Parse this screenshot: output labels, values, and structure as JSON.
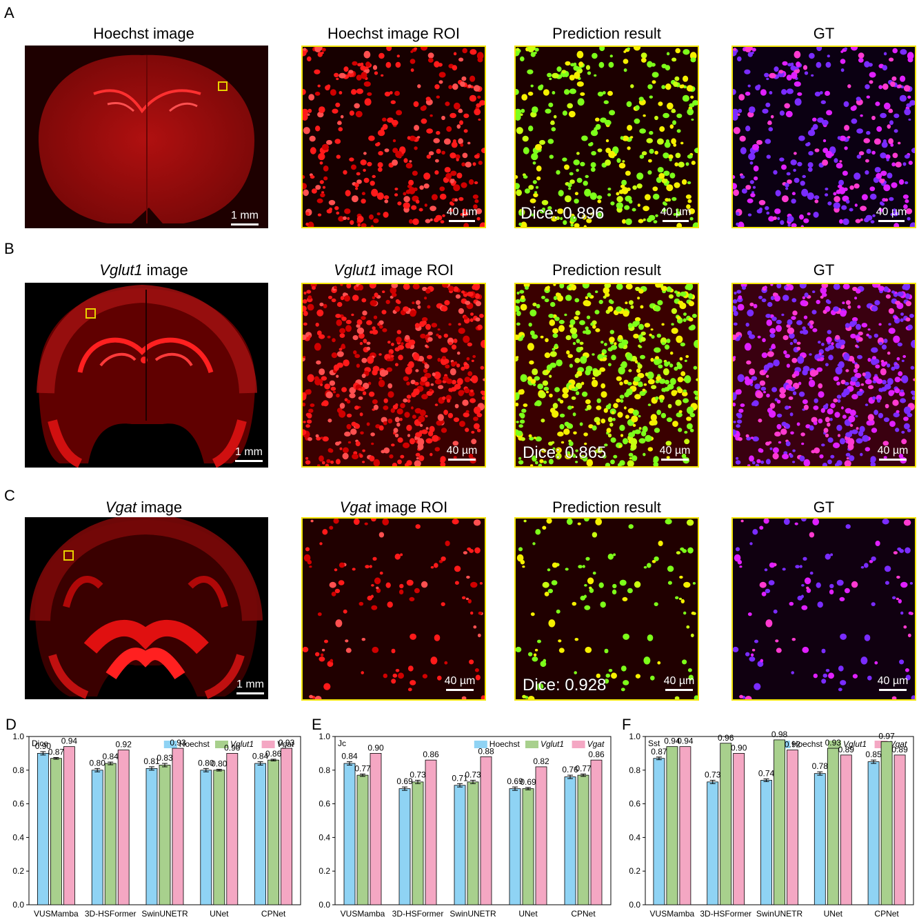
{
  "panels": {
    "A": {
      "letter": "A",
      "titles": {
        "t1": "Hoechst image",
        "t2": "Hoechst  image ROI",
        "t3": "Prediction result",
        "t4": "GT"
      },
      "scale_mm": "1 mm",
      "scale_um": "40 µm",
      "dice": "Dice: 0.896"
    },
    "B": {
      "letter": "B",
      "titles": {
        "t1_italic": "Vglut1",
        "t1_rest": " image",
        "t2_italic": "Vglut1",
        "t2_rest": " image ROI",
        "t3": "Prediction result",
        "t4": "GT"
      },
      "scale_mm": "1 mm",
      "scale_um": "40 µm",
      "dice": "Dice: 0.865"
    },
    "C": {
      "letter": "C",
      "titles": {
        "t1_italic": "Vgat",
        "t1_rest": " image",
        "t2_italic": "Vgat",
        "t2_rest": " image ROI",
        "t3": "Prediction result",
        "t4": "GT"
      },
      "scale_mm": "1 mm",
      "scale_um": "40 µm",
      "dice": "Dice: 0.928"
    }
  },
  "colors": {
    "hoechst": "#8fd3f4",
    "vglut1": "#a8d08d",
    "vgat": "#f4a7c3",
    "roi": "#f2e400"
  },
  "chart_data": [
    {
      "letter": "D",
      "type": "bar",
      "ylabel": "Dice",
      "ylim": [
        0,
        1.0
      ],
      "yticks": [
        "0.0",
        "0.2",
        "0.4",
        "0.6",
        "0.8",
        "1.0"
      ],
      "categories": [
        "VUSMamba",
        "3D-HSFormer",
        "SwinUNETR",
        "UNet",
        "CPNet"
      ],
      "series": [
        {
          "name": "Hoechst",
          "color": "#8fd3f4",
          "values": [
            0.9,
            0.8,
            0.81,
            0.8,
            0.84
          ],
          "labels": [
            "0.90",
            "0.80",
            "0.81",
            "0.80",
            "0.84"
          ],
          "err": [
            0.01,
            0.01,
            0.01,
            0.01,
            0.01
          ]
        },
        {
          "name": "Vglut1",
          "italic": true,
          "color": "#a8d08d",
          "values": [
            0.87,
            0.84,
            0.83,
            0.8,
            0.86
          ],
          "labels": [
            "0.87",
            "0.84",
            "0.83",
            "0.80",
            "0.86"
          ],
          "err": [
            0.005,
            0.008,
            0.01,
            0.005,
            0.005
          ]
        },
        {
          "name": "Vgat",
          "italic": true,
          "color": "#f4a7c3",
          "values": [
            0.94,
            0.92,
            0.93,
            0.9,
            0.93
          ],
          "labels": [
            "0.94",
            "0.92",
            "0.93",
            "0.90",
            "0.93"
          ],
          "err": [
            0,
            0,
            0,
            0,
            0
          ]
        }
      ]
    },
    {
      "letter": "E",
      "type": "bar",
      "ylabel": "Jc",
      "ylim": [
        0,
        1.0
      ],
      "yticks": [
        "0.0",
        "0.2",
        "0.4",
        "0.6",
        "0.8",
        "1.0"
      ],
      "categories": [
        "VUSMamba",
        "3D-HSFormer",
        "SwinUNETR",
        "UNet",
        "CPNet"
      ],
      "series": [
        {
          "name": "Hoechst",
          "color": "#8fd3f4",
          "values": [
            0.84,
            0.69,
            0.71,
            0.69,
            0.76
          ],
          "labels": [
            "0.84",
            "0.69",
            "0.71",
            "0.69",
            "0.76"
          ],
          "err": [
            0.01,
            0.01,
            0.01,
            0.01,
            0.01
          ]
        },
        {
          "name": "Vglut1",
          "italic": true,
          "color": "#a8d08d",
          "values": [
            0.77,
            0.73,
            0.73,
            0.69,
            0.77
          ],
          "labels": [
            "0.77",
            "0.73",
            "0.73",
            "0.69",
            "0.77"
          ],
          "err": [
            0.007,
            0.01,
            0.01,
            0.007,
            0.007
          ]
        },
        {
          "name": "Vgat",
          "italic": true,
          "color": "#f4a7c3",
          "values": [
            0.9,
            0.86,
            0.88,
            0.82,
            0.86
          ],
          "labels": [
            "0.90",
            "0.86",
            "0.88",
            "0.82",
            "0.86"
          ],
          "err": [
            0,
            0,
            0,
            0,
            0
          ]
        }
      ]
    },
    {
      "letter": "F",
      "type": "bar",
      "ylabel": "Sst",
      "ylim": [
        0,
        1.0
      ],
      "yticks": [
        "0.0",
        "0.2",
        "0.4",
        "0.6",
        "0.8",
        "1.0"
      ],
      "categories": [
        "VUSMamba",
        "3D-HSFormer",
        "SwinUNETR",
        "UNet",
        "CPNet"
      ],
      "series": [
        {
          "name": "Hoechst",
          "color": "#8fd3f4",
          "values": [
            0.87,
            0.73,
            0.74,
            0.78,
            0.85
          ],
          "labels": [
            "0.87",
            "0.73",
            "0.74",
            "0.78",
            "0.85"
          ],
          "err": [
            0.008,
            0.01,
            0.008,
            0.01,
            0.01
          ]
        },
        {
          "name": "Vglut1",
          "italic": true,
          "color": "#a8d08d",
          "values": [
            0.94,
            0.96,
            0.98,
            0.93,
            0.97
          ],
          "labels": [
            "0.94",
            "0.96",
            "0.98",
            "0.93",
            "0.97"
          ],
          "err": [
            0,
            0,
            0,
            0,
            0
          ]
        },
        {
          "name": "Vgat",
          "italic": true,
          "color": "#f4a7c3",
          "values": [
            0.94,
            0.9,
            0.92,
            0.89,
            0.89
          ],
          "labels": [
            "0.94",
            "0.90",
            "0.92",
            "0.89",
            "0.89"
          ],
          "err": [
            0,
            0,
            0,
            0,
            0
          ]
        }
      ]
    }
  ]
}
